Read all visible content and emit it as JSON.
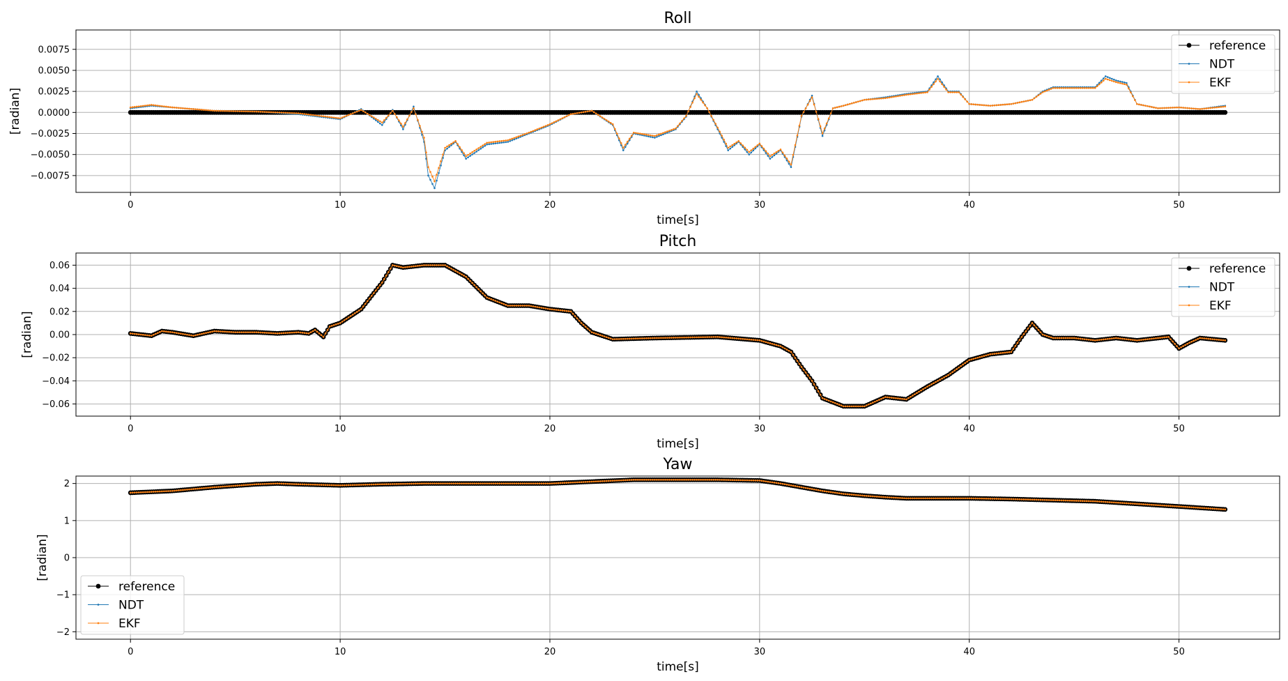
{
  "chart_data": [
    {
      "type": "line",
      "title": "Roll",
      "xlabel": "time[s]",
      "ylabel": "[radian]",
      "xlim": [
        -2.6,
        54.8
      ],
      "ylim": [
        -0.0095,
        0.0098
      ],
      "xticks": [
        0,
        10,
        20,
        30,
        40,
        50
      ],
      "xtick_labels": [
        "0",
        "10",
        "20",
        "30",
        "40",
        "50"
      ],
      "yticks": [
        -0.0075,
        -0.005,
        -0.0025,
        0.0,
        0.0025,
        0.005,
        0.0075
      ],
      "ytick_labels": [
        "−0.0075",
        "−0.0050",
        "−0.0025",
        "0.0000",
        "0.0025",
        "0.0050",
        "0.0075"
      ],
      "grid": true,
      "legend_position": "upper right",
      "series": [
        {
          "name": "reference",
          "color": "#000000",
          "marker": "dot-large",
          "x": [
            0,
            52.2
          ],
          "y": [
            0.0,
            0.0
          ]
        },
        {
          "name": "NDT",
          "color": "#1f77b4",
          "marker": "dot-small",
          "x": [
            0,
            1,
            2,
            4,
            6,
            8,
            9,
            10,
            11,
            12,
            12.5,
            13,
            13.5,
            14,
            14.2,
            14.5,
            15,
            15.5,
            16,
            17,
            18,
            19,
            20,
            21,
            22,
            23,
            23.5,
            24,
            25,
            26,
            26.5,
            27,
            27.5,
            28,
            28.5,
            29,
            29.5,
            30,
            30.5,
            31,
            31.5,
            32,
            32.5,
            33,
            33.5,
            34,
            35,
            36,
            37,
            38,
            38.5,
            39,
            39.5,
            40,
            41,
            42,
            43,
            43.5,
            44,
            45,
            46,
            46.5,
            47,
            47.5,
            48,
            49,
            50,
            51,
            52.2
          ],
          "y": [
            0.0005,
            0.0008,
            0.0006,
            0.0002,
            0.0001,
            -0.0002,
            -0.0005,
            -0.0008,
            0.0004,
            -0.0015,
            0.0003,
            -0.002,
            0.0007,
            -0.0035,
            -0.0075,
            -0.009,
            -0.0045,
            -0.0035,
            -0.0055,
            -0.0038,
            -0.0035,
            -0.0025,
            -0.0015,
            -0.0002,
            0.0002,
            -0.0015,
            -0.0045,
            -0.0025,
            -0.003,
            -0.002,
            -0.0005,
            0.0025,
            0.0005,
            -0.002,
            -0.0045,
            -0.0035,
            -0.005,
            -0.0038,
            -0.0055,
            -0.0045,
            -0.0065,
            -0.0005,
            0.002,
            -0.0028,
            0.0005,
            0.0008,
            0.0015,
            0.0018,
            0.0022,
            0.0025,
            0.0043,
            0.0025,
            0.0025,
            0.001,
            0.0008,
            0.001,
            0.0015,
            0.0025,
            0.003,
            0.003,
            0.003,
            0.0043,
            0.0038,
            0.0035,
            0.001,
            0.0005,
            0.0006,
            0.0004,
            0.0008
          ]
        },
        {
          "name": "EKF",
          "color": "#ff7f0e",
          "marker": "dot-small",
          "x": [
            0,
            1,
            2,
            4,
            6,
            8,
            9,
            10,
            11,
            12,
            12.5,
            13,
            13.5,
            14,
            14.2,
            14.5,
            15,
            15.5,
            16,
            17,
            18,
            19,
            20,
            21,
            22,
            23,
            23.5,
            24,
            25,
            26,
            26.5,
            27,
            27.5,
            28,
            28.5,
            29,
            29.5,
            30,
            30.5,
            31,
            31.5,
            32,
            32.5,
            33,
            33.5,
            34,
            35,
            36,
            37,
            38,
            38.5,
            39,
            39.5,
            40,
            41,
            42,
            43,
            43.5,
            44,
            45,
            46,
            46.5,
            47,
            47.5,
            48,
            49,
            50,
            51,
            52.2
          ],
          "y": [
            0.0006,
            0.0009,
            0.0006,
            0.0002,
            0.0001,
            -0.0001,
            -0.0004,
            -0.0007,
            0.0003,
            -0.0012,
            0.0002,
            -0.0017,
            0.0005,
            -0.003,
            -0.0065,
            -0.0082,
            -0.0042,
            -0.0034,
            -0.0052,
            -0.0036,
            -0.0033,
            -0.0024,
            -0.0014,
            -0.0002,
            0.0002,
            -0.0014,
            -0.0042,
            -0.0024,
            -0.0028,
            -0.0019,
            -0.0004,
            0.0022,
            0.0005,
            -0.0018,
            -0.0042,
            -0.0034,
            -0.0047,
            -0.0037,
            -0.0052,
            -0.0044,
            -0.0062,
            -0.0004,
            0.0018,
            -0.0025,
            0.0005,
            0.0008,
            0.0015,
            0.0017,
            0.0021,
            0.0024,
            0.004,
            0.0024,
            0.0024,
            0.001,
            0.0008,
            0.001,
            0.0015,
            0.0024,
            0.0029,
            0.0029,
            0.0029,
            0.004,
            0.0036,
            0.0033,
            0.001,
            0.0005,
            0.0006,
            0.0004,
            0.0007
          ]
        }
      ]
    },
    {
      "type": "line",
      "title": "Pitch",
      "xlabel": "time[s]",
      "ylabel": "[radian]",
      "xlim": [
        -2.6,
        54.8
      ],
      "ylim": [
        -0.0705,
        0.0705
      ],
      "xticks": [
        0,
        10,
        20,
        30,
        40,
        50
      ],
      "xtick_labels": [
        "0",
        "10",
        "20",
        "30",
        "40",
        "50"
      ],
      "yticks": [
        -0.06,
        -0.04,
        -0.02,
        0.0,
        0.02,
        0.04,
        0.06
      ],
      "ytick_labels": [
        "−0.06",
        "−0.04",
        "−0.02",
        "0.00",
        "0.02",
        "0.04",
        "0.06"
      ],
      "grid": true,
      "legend_position": "upper right",
      "series": [
        {
          "name": "reference",
          "color": "#000000",
          "marker": "dot-large",
          "x": [
            0,
            1,
            1.5,
            2,
            3,
            4,
            5,
            6,
            7,
            8,
            8.5,
            8.8,
            9.2,
            9.5,
            10,
            11,
            12,
            12.5,
            13,
            14,
            15,
            16,
            17,
            18,
            19,
            20,
            21,
            21.5,
            22,
            23,
            25,
            28,
            30,
            31,
            31.5,
            32,
            32.5,
            33,
            34,
            35,
            36,
            37,
            38,
            39,
            40,
            41,
            42,
            42.5,
            43,
            43.5,
            44,
            45,
            46,
            47,
            48,
            49,
            49.5,
            50,
            50.5,
            51,
            52.2
          ],
          "y": [
            0.001,
            -0.001,
            0.003,
            0.002,
            -0.001,
            0.003,
            0.002,
            0.002,
            0.001,
            0.002,
            0.001,
            0.004,
            -0.002,
            0.007,
            0.01,
            0.022,
            0.045,
            0.06,
            0.058,
            0.06,
            0.06,
            0.05,
            0.032,
            0.025,
            0.025,
            0.022,
            0.02,
            0.01,
            0.002,
            -0.004,
            -0.003,
            -0.002,
            -0.005,
            -0.01,
            -0.015,
            -0.028,
            -0.04,
            -0.055,
            -0.062,
            -0.062,
            -0.054,
            -0.056,
            -0.045,
            -0.035,
            -0.022,
            -0.017,
            -0.015,
            -0.002,
            0.01,
            0.0,
            -0.003,
            -0.003,
            -0.005,
            -0.003,
            -0.005,
            -0.003,
            -0.002,
            -0.012,
            -0.007,
            -0.003,
            -0.005
          ]
        },
        {
          "name": "NDT",
          "color": "#1f77b4",
          "marker": "dot-small",
          "x": [
            0,
            1,
            1.5,
            2,
            3,
            4,
            5,
            6,
            7,
            8,
            8.5,
            8.8,
            9.2,
            9.5,
            10,
            11,
            12,
            12.5,
            13,
            14,
            15,
            16,
            17,
            18,
            19,
            20,
            21,
            21.5,
            22,
            23,
            25,
            28,
            30,
            31,
            31.5,
            32,
            32.5,
            33,
            34,
            35,
            36,
            37,
            38,
            39,
            40,
            41,
            42,
            42.5,
            43,
            43.5,
            44,
            45,
            46,
            47,
            48,
            49,
            49.5,
            50,
            50.5,
            51,
            52.2
          ],
          "y": [
            0.001,
            -0.001,
            0.003,
            0.002,
            -0.001,
            0.003,
            0.002,
            0.002,
            0.001,
            0.002,
            0.001,
            0.004,
            -0.002,
            0.007,
            0.01,
            0.022,
            0.045,
            0.06,
            0.058,
            0.06,
            0.06,
            0.05,
            0.032,
            0.025,
            0.025,
            0.022,
            0.02,
            0.01,
            0.002,
            -0.004,
            -0.003,
            -0.002,
            -0.005,
            -0.01,
            -0.015,
            -0.028,
            -0.04,
            -0.055,
            -0.062,
            -0.062,
            -0.054,
            -0.056,
            -0.045,
            -0.035,
            -0.022,
            -0.017,
            -0.015,
            -0.002,
            0.01,
            0.0,
            -0.003,
            -0.003,
            -0.005,
            -0.003,
            -0.005,
            -0.003,
            -0.002,
            -0.012,
            -0.007,
            -0.003,
            -0.005
          ]
        },
        {
          "name": "EKF",
          "color": "#ff7f0e",
          "marker": "dot-small",
          "x": [
            0,
            1,
            1.5,
            2,
            3,
            4,
            5,
            6,
            7,
            8,
            8.5,
            8.8,
            9.2,
            9.5,
            10,
            11,
            12,
            12.5,
            13,
            14,
            15,
            16,
            17,
            18,
            19,
            20,
            21,
            21.5,
            22,
            23,
            25,
            28,
            30,
            31,
            31.5,
            32,
            32.5,
            33,
            34,
            35,
            36,
            37,
            38,
            39,
            40,
            41,
            42,
            42.5,
            43,
            43.5,
            44,
            45,
            46,
            47,
            48,
            49,
            49.5,
            50,
            50.5,
            51,
            52.2
          ],
          "y": [
            0.001,
            -0.001,
            0.003,
            0.002,
            -0.001,
            0.003,
            0.002,
            0.002,
            0.001,
            0.002,
            0.001,
            0.004,
            -0.002,
            0.007,
            0.01,
            0.022,
            0.045,
            0.06,
            0.058,
            0.06,
            0.06,
            0.05,
            0.032,
            0.025,
            0.025,
            0.022,
            0.02,
            0.01,
            0.002,
            -0.004,
            -0.003,
            -0.002,
            -0.005,
            -0.01,
            -0.015,
            -0.028,
            -0.04,
            -0.055,
            -0.062,
            -0.062,
            -0.054,
            -0.056,
            -0.045,
            -0.035,
            -0.022,
            -0.017,
            -0.015,
            -0.002,
            0.01,
            0.0,
            -0.003,
            -0.003,
            -0.005,
            -0.003,
            -0.005,
            -0.003,
            -0.002,
            -0.012,
            -0.007,
            -0.003,
            -0.005
          ]
        }
      ]
    },
    {
      "type": "line",
      "title": "Yaw",
      "xlabel": "time[s]",
      "ylabel": "[radian]",
      "xlim": [
        -2.6,
        54.8
      ],
      "ylim": [
        -2.2,
        2.2
      ],
      "xticks": [
        0,
        10,
        20,
        30,
        40,
        50
      ],
      "xtick_labels": [
        "0",
        "10",
        "20",
        "30",
        "40",
        "50"
      ],
      "yticks": [
        -2,
        -1,
        0,
        1,
        2
      ],
      "ytick_labels": [
        "−2",
        "−1",
        "0",
        "1",
        "2"
      ],
      "grid": true,
      "legend_position": "lower left",
      "series": [
        {
          "name": "reference",
          "color": "#000000",
          "marker": "dot-large",
          "x": [
            0,
            2,
            4,
            6,
            7,
            8,
            10,
            12,
            14,
            18,
            20,
            22,
            24,
            28,
            30,
            31,
            32,
            33,
            34,
            35,
            36,
            37,
            38,
            40,
            42,
            44,
            46,
            48,
            50,
            52.2
          ],
          "y": [
            1.75,
            1.8,
            1.9,
            1.98,
            2.0,
            1.98,
            1.95,
            1.98,
            2.0,
            2.0,
            2.0,
            2.05,
            2.1,
            2.1,
            2.08,
            2.0,
            1.9,
            1.8,
            1.72,
            1.67,
            1.63,
            1.6,
            1.6,
            1.6,
            1.58,
            1.55,
            1.52,
            1.45,
            1.38,
            1.3
          ]
        },
        {
          "name": "NDT",
          "color": "#1f77b4",
          "marker": "dot-small",
          "x": [
            0,
            2,
            4,
            6,
            7,
            8,
            10,
            12,
            14,
            18,
            20,
            22,
            24,
            28,
            30,
            31,
            32,
            33,
            34,
            35,
            36,
            37,
            38,
            40,
            42,
            44,
            46,
            48,
            50,
            52.2
          ],
          "y": [
            1.75,
            1.8,
            1.9,
            1.98,
            2.0,
            1.98,
            1.95,
            1.98,
            2.0,
            2.0,
            2.0,
            2.05,
            2.1,
            2.1,
            2.08,
            2.0,
            1.9,
            1.8,
            1.72,
            1.67,
            1.63,
            1.6,
            1.6,
            1.6,
            1.58,
            1.55,
            1.52,
            1.45,
            1.38,
            1.3
          ]
        },
        {
          "name": "EKF",
          "color": "#ff7f0e",
          "marker": "dot-small",
          "x": [
            0,
            2,
            4,
            6,
            7,
            8,
            10,
            12,
            14,
            18,
            20,
            22,
            24,
            28,
            30,
            31,
            32,
            33,
            34,
            35,
            36,
            37,
            38,
            40,
            42,
            44,
            46,
            48,
            50,
            52.2
          ],
          "y": [
            1.75,
            1.8,
            1.9,
            1.98,
            2.0,
            1.98,
            1.95,
            1.98,
            2.0,
            2.0,
            2.0,
            2.05,
            2.1,
            2.1,
            2.08,
            2.0,
            1.9,
            1.8,
            1.72,
            1.67,
            1.63,
            1.6,
            1.6,
            1.6,
            1.58,
            1.55,
            1.52,
            1.45,
            1.38,
            1.3
          ]
        }
      ]
    }
  ]
}
